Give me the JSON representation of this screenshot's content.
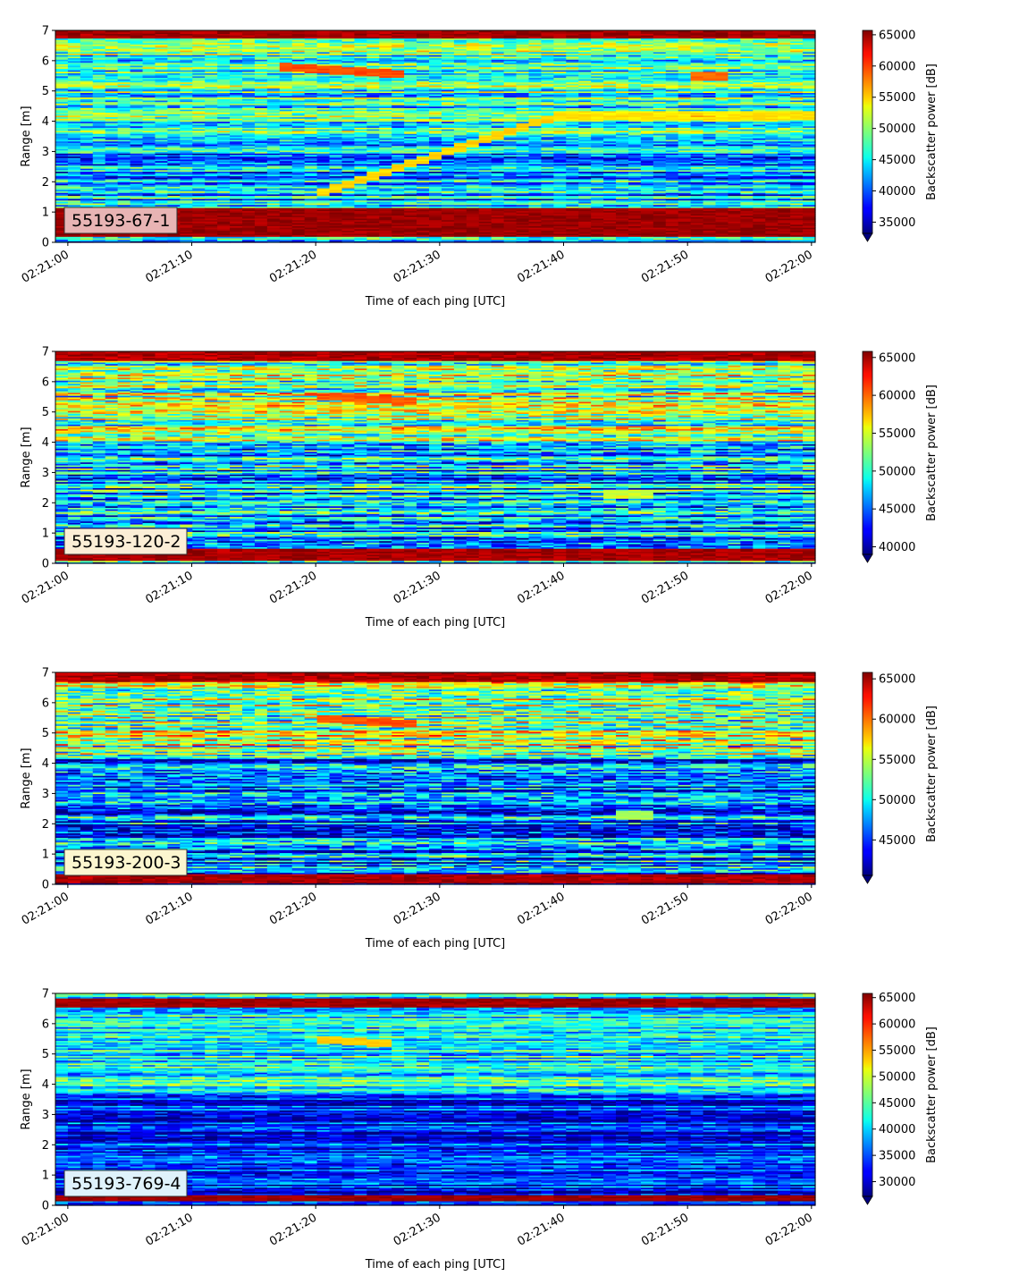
{
  "chart_data": [
    {
      "type": "heatmap",
      "label": "55193-67-1",
      "label_box_color": "#e8b4b4",
      "xlabel": "Time of each ping [UTC]",
      "ylabel": "Range [m]",
      "x_ticks": [
        "02:21:00",
        "02:21:10",
        "02:21:20",
        "02:21:30",
        "02:21:40",
        "02:21:50",
        "02:22:00"
      ],
      "xlim_seconds": [
        -1,
        60.3
      ],
      "y_ticks": [
        "0",
        "1",
        "2",
        "3",
        "4",
        "5",
        "6",
        "7"
      ],
      "ylim": [
        0,
        7
      ],
      "colorbar_label": "Backscatter power [dB]",
      "colorbar_ticks": [
        "35000",
        "40000",
        "45000",
        "50000",
        "55000",
        "60000",
        "65000"
      ],
      "color_range": [
        33200,
        65700
      ],
      "colormap": "jet",
      "grid": false,
      "features": {
        "top_band": {
          "range": [
            6.75,
            7.0
          ],
          "value": 66000
        },
        "bottom_band": {
          "range": [
            0.2,
            1.15
          ],
          "value": 66000
        },
        "upper_texture_mean": 47000,
        "lower_texture_mean": 43000,
        "texture_split_range": 3.6,
        "tracks": [
          {
            "kind": "rising",
            "t": [
              20.5,
              39.5
            ],
            "range": [
              1.65,
              4.2
            ],
            "value": 55500
          },
          {
            "kind": "flat",
            "t": [
              39.5,
              60
            ],
            "range": [
              4.2,
              4.2
            ],
            "value": 55000
          },
          {
            "kind": "flat",
            "t": [
              17.5,
              27.5
            ],
            "range": [
              5.8,
              5.55
            ],
            "value": 60000
          },
          {
            "kind": "flat",
            "t": [
              50,
              53
            ],
            "range": [
              5.5,
              5.5
            ],
            "value": 59000
          }
        ]
      }
    },
    {
      "type": "heatmap",
      "label": "55193-120-2",
      "label_box_color": "#fbeed6",
      "xlabel": "Time of each ping [UTC]",
      "ylabel": "Range [m]",
      "x_ticks": [
        "02:21:00",
        "02:21:10",
        "02:21:20",
        "02:21:30",
        "02:21:40",
        "02:21:50",
        "02:22:00"
      ],
      "xlim_seconds": [
        -1,
        60.3
      ],
      "y_ticks": [
        "0",
        "1",
        "2",
        "3",
        "4",
        "5",
        "6",
        "7"
      ],
      "ylim": [
        0,
        7
      ],
      "colorbar_label": "Backscatter power [dB]",
      "colorbar_ticks": [
        "40000",
        "45000",
        "50000",
        "55000",
        "60000",
        "65000"
      ],
      "color_range": [
        39000,
        65800
      ],
      "colormap": "jet",
      "grid": false,
      "features": {
        "top_band": {
          "range": [
            6.7,
            7.0
          ],
          "value": 66000
        },
        "bottom_band": {
          "range": [
            0.1,
            0.5
          ],
          "value": 66000
        },
        "upper_texture_mean": 53000,
        "lower_texture_mean": 47500,
        "texture_split_range": 4.0,
        "tracks": [
          {
            "kind": "flat",
            "t": [
              20,
              28
            ],
            "range": [
              5.55,
              5.35
            ],
            "value": 61000
          },
          {
            "kind": "flat",
            "t": [
              43.5,
              47.5
            ],
            "range": [
              2.3,
              2.3
            ],
            "value": 55000
          }
        ]
      }
    },
    {
      "type": "heatmap",
      "label": "55193-200-3",
      "label_box_color": "#fcf6cf",
      "xlabel": "Time of each ping [UTC]",
      "ylabel": "Range [m]",
      "x_ticks": [
        "02:21:00",
        "02:21:10",
        "02:21:20",
        "02:21:30",
        "02:21:40",
        "02:21:50",
        "02:22:00"
      ],
      "xlim_seconds": [
        -1,
        60.3
      ],
      "y_ticks": [
        "0",
        "1",
        "2",
        "3",
        "4",
        "5",
        "6",
        "7"
      ],
      "ylim": [
        0,
        7
      ],
      "colorbar_label": "Backscatter power [dB]",
      "colorbar_ticks": [
        "45000",
        "50000",
        "55000",
        "60000",
        "65000"
      ],
      "color_range": [
        40600,
        65800
      ],
      "colormap": "jet",
      "grid": false,
      "features": {
        "top_band": {
          "range": [
            6.7,
            7.0
          ],
          "value": 66000
        },
        "bottom_band": {
          "range": [
            0.05,
            0.35
          ],
          "value": 66000
        },
        "upper_texture_mean": 53000,
        "lower_texture_mean": 46000,
        "texture_split_range": 4.2,
        "tracks": [
          {
            "kind": "flat",
            "t": [
              20,
              28
            ],
            "range": [
              5.5,
              5.3
            ],
            "value": 61500
          },
          {
            "kind": "flat",
            "t": [
              44,
              47
            ],
            "range": [
              2.3,
              2.3
            ],
            "value": 55000
          }
        ]
      }
    },
    {
      "type": "heatmap",
      "label": "55193-769-4",
      "label_box_color": "#dff2fb",
      "xlabel": "Time of each ping [UTC]",
      "ylabel": "Range [m]",
      "x_ticks": [
        "02:21:00",
        "02:21:10",
        "02:21:20",
        "02:21:30",
        "02:21:40",
        "02:21:50",
        "02:22:00"
      ],
      "xlim_seconds": [
        -1,
        60.3
      ],
      "y_ticks": [
        "0",
        "1",
        "2",
        "3",
        "4",
        "5",
        "6",
        "7"
      ],
      "ylim": [
        0,
        7
      ],
      "colorbar_label": "Backscatter power [dB]",
      "colorbar_ticks": [
        "30000",
        "35000",
        "40000",
        "45000",
        "50000",
        "55000",
        "60000",
        "65000"
      ],
      "color_range": [
        27200,
        65800
      ],
      "colormap": "jet",
      "grid": false,
      "features": {
        "top_band": {
          "range": [
            6.55,
            6.85
          ],
          "value": 66000
        },
        "bottom_band": {
          "range": [
            0.15,
            0.35
          ],
          "value": 66000
        },
        "upper_texture_mean": 42000,
        "lower_texture_mean": 33500,
        "texture_split_range": 3.7,
        "tracks": [
          {
            "kind": "flat",
            "t": [
              20,
              26
            ],
            "range": [
              5.5,
              5.35
            ],
            "value": 54000
          }
        ]
      }
    }
  ]
}
